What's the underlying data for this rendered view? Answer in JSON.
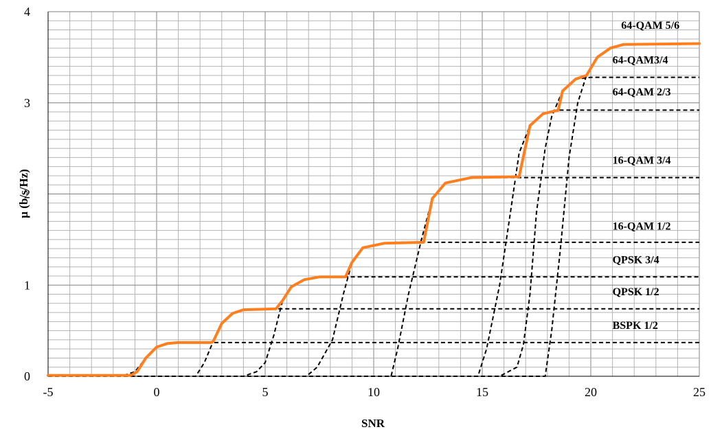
{
  "chart_data": {
    "type": "line",
    "title": "",
    "xlabel": "SNR",
    "ylabel": "µ (b/s/Hz)",
    "xlim": [
      -5,
      25
    ],
    "ylim": [
      0,
      4
    ],
    "x_ticks": [
      -5,
      0,
      5,
      10,
      15,
      20,
      25
    ],
    "y_ticks": [
      0,
      1,
      2,
      3,
      4
    ],
    "grid": true,
    "legend": "none",
    "colors": {
      "envelope": "#ff7f1e",
      "modes": "#000000",
      "grid": "#b3b3b3",
      "grid_major": "#808080"
    },
    "series": [
      {
        "name": "BSPK 1/2",
        "style": "dashed",
        "points": [
          [
            -5,
            0
          ],
          [
            -1.5,
            0.01
          ],
          [
            -1,
            0.05
          ],
          [
            -0.5,
            0.2
          ],
          [
            0,
            0.32
          ],
          [
            0.5,
            0.36
          ],
          [
            1,
            0.37
          ],
          [
            2,
            0.37
          ],
          [
            25,
            0.37
          ]
        ]
      },
      {
        "name": "QPSK 1/2",
        "style": "dashed",
        "points": [
          [
            -5,
            0
          ],
          [
            1.8,
            0
          ],
          [
            2.2,
            0.15
          ],
          [
            2.6,
            0.38
          ],
          [
            3,
            0.58
          ],
          [
            3.5,
            0.69
          ],
          [
            4,
            0.73
          ],
          [
            5,
            0.74
          ],
          [
            25,
            0.74
          ]
        ]
      },
      {
        "name": "QPSK 3/4",
        "style": "dashed",
        "points": [
          [
            -5,
            0
          ],
          [
            4,
            0
          ],
          [
            4.6,
            0.05
          ],
          [
            5,
            0.15
          ],
          [
            5.4,
            0.45
          ],
          [
            5.8,
            0.83
          ],
          [
            6.2,
            0.98
          ],
          [
            6.8,
            1.06
          ],
          [
            7.5,
            1.09
          ],
          [
            25,
            1.09
          ]
        ]
      },
      {
        "name": "16-QAM 1/2",
        "style": "dashed",
        "points": [
          [
            -5,
            0
          ],
          [
            6.9,
            0
          ],
          [
            7.4,
            0.1
          ],
          [
            8.1,
            0.4
          ],
          [
            8.6,
            0.9
          ],
          [
            9,
            1.25
          ],
          [
            9.5,
            1.41
          ],
          [
            10.5,
            1.46
          ],
          [
            11,
            1.47
          ],
          [
            25,
            1.47
          ]
        ]
      },
      {
        "name": "16-QAM 3/4",
        "style": "dashed",
        "points": [
          [
            -5,
            0
          ],
          [
            10.8,
            0
          ],
          [
            11.1,
            0.3
          ],
          [
            11.6,
            0.9
          ],
          [
            12.2,
            1.5
          ],
          [
            12.7,
            1.95
          ],
          [
            13.3,
            2.12
          ],
          [
            14.5,
            2.18
          ],
          [
            25,
            2.18
          ]
        ]
      },
      {
        "name": "64-QAM 2/3",
        "style": "dashed",
        "points": [
          [
            -5,
            0
          ],
          [
            14.8,
            0
          ],
          [
            15.2,
            0.3
          ],
          [
            15.8,
            1.0
          ],
          [
            16.3,
            1.8
          ],
          [
            16.7,
            2.45
          ],
          [
            17.2,
            2.75
          ],
          [
            17.8,
            2.88
          ],
          [
            18.5,
            2.92
          ],
          [
            25,
            2.92
          ]
        ]
      },
      {
        "name": "64-QAM3/4",
        "style": "dashed",
        "points": [
          [
            -5,
            0
          ],
          [
            15.8,
            0
          ],
          [
            16.6,
            0.1
          ],
          [
            16.9,
            0.35
          ],
          [
            17.2,
            0.9
          ],
          [
            17.5,
            1.8
          ],
          [
            17.9,
            2.5
          ],
          [
            18.2,
            2.85
          ],
          [
            18.7,
            3.13
          ],
          [
            19.3,
            3.26
          ],
          [
            20,
            3.28
          ],
          [
            25,
            3.28
          ]
        ]
      },
      {
        "name": "64-QAM 5/6",
        "style": "dashed",
        "points": [
          [
            -5,
            0
          ],
          [
            17.9,
            0
          ],
          [
            18.2,
            0.5
          ],
          [
            18.6,
            1.4
          ],
          [
            19,
            2.4
          ],
          [
            19.4,
            3.0
          ],
          [
            19.8,
            3.3
          ],
          [
            20.3,
            3.5
          ],
          [
            20.9,
            3.6
          ],
          [
            21.5,
            3.64
          ],
          [
            25,
            3.65
          ]
        ]
      },
      {
        "name": "",
        "style": "envelope",
        "points": [
          [
            -5,
            0.01
          ],
          [
            -1.2,
            0.01
          ],
          [
            -0.9,
            0.05
          ],
          [
            -0.5,
            0.2
          ],
          [
            0,
            0.32
          ],
          [
            0.5,
            0.36
          ],
          [
            1,
            0.37
          ],
          [
            2.5,
            0.37
          ],
          [
            2.6,
            0.38
          ],
          [
            3,
            0.58
          ],
          [
            3.5,
            0.69
          ],
          [
            4,
            0.73
          ],
          [
            5.5,
            0.74
          ],
          [
            5.8,
            0.83
          ],
          [
            6.2,
            0.98
          ],
          [
            6.8,
            1.06
          ],
          [
            7.5,
            1.09
          ],
          [
            8.7,
            1.09
          ],
          [
            9,
            1.25
          ],
          [
            9.5,
            1.41
          ],
          [
            10.5,
            1.46
          ],
          [
            12.3,
            1.47
          ],
          [
            12.7,
            1.95
          ],
          [
            13.3,
            2.12
          ],
          [
            14.5,
            2.18
          ],
          [
            16.7,
            2.19
          ],
          [
            17.2,
            2.75
          ],
          [
            17.8,
            2.88
          ],
          [
            18.5,
            2.92
          ],
          [
            18.7,
            3.13
          ],
          [
            19.3,
            3.26
          ],
          [
            19.8,
            3.3
          ],
          [
            20.3,
            3.5
          ],
          [
            20.9,
            3.6
          ],
          [
            21.5,
            3.64
          ],
          [
            25,
            3.65
          ]
        ]
      }
    ],
    "annotations": [
      {
        "text": "64-QAM 5/6",
        "x": 21.4,
        "y": 3.81
      },
      {
        "text": "64-QAM3/4",
        "x": 21.0,
        "y": 3.43
      },
      {
        "text": "64-QAM 2/3",
        "x": 21.0,
        "y": 3.08
      },
      {
        "text": "16-QAM 3/4",
        "x": 21.0,
        "y": 2.33
      },
      {
        "text": "16-QAM 1/2",
        "x": 21.0,
        "y": 1.61
      },
      {
        "text": "QPSK 3/4",
        "x": 21.0,
        "y": 1.24
      },
      {
        "text": "QPSK 1/2",
        "x": 21.0,
        "y": 0.89
      },
      {
        "text": "BSPK 1/2",
        "x": 21.0,
        "y": 0.52
      }
    ]
  }
}
